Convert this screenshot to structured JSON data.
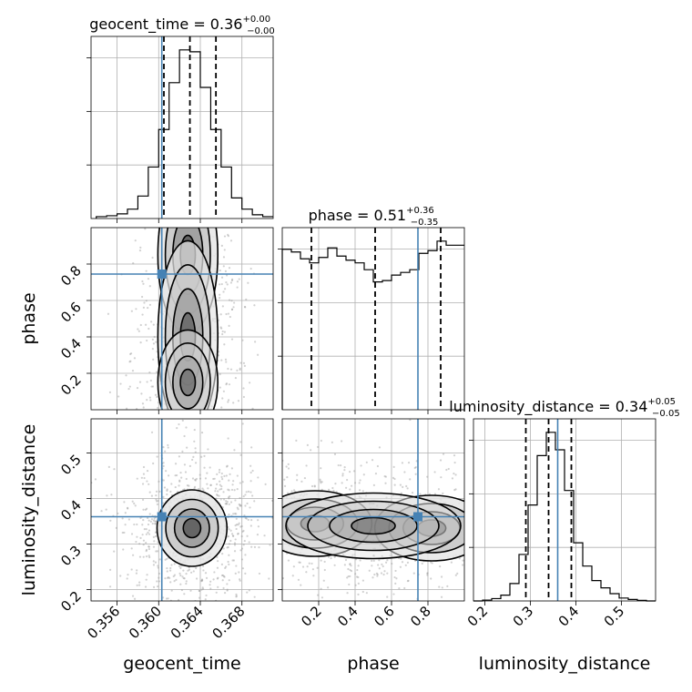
{
  "chart_data": {
    "type": "corner",
    "truth_color": "#4682b4",
    "parameters": [
      {
        "name": "geocent_time",
        "label": "geocent_time",
        "title": "geocent_time = 0.36",
        "median": "0.36",
        "err_plus": "+0.00",
        "err_minus": "−0.00",
        "range": [
          0.3535,
          0.371
        ],
        "ticks": [
          0.356,
          0.36,
          0.364,
          0.368
        ],
        "tick_labels": [
          "0.356",
          "0.360",
          "0.364",
          "0.368"
        ],
        "quantiles": [
          0.3605,
          0.363,
          0.3655
        ],
        "truth": 0.3603,
        "hist_x": [
          0.354,
          0.355,
          0.356,
          0.357,
          0.358,
          0.359,
          0.36,
          0.361,
          0.362,
          0.363,
          0.364,
          0.365,
          0.366,
          0.367,
          0.368,
          0.369,
          0.37
        ],
        "hist_y": [
          2,
          3,
          5,
          10,
          24,
          55,
          95,
          145,
          180,
          178,
          140,
          95,
          55,
          22,
          10,
          4,
          2
        ]
      },
      {
        "name": "phase",
        "label": "phase",
        "title": "phase = 0.51",
        "median": "0.51",
        "err_plus": "+0.36",
        "err_minus": "−0.35",
        "range": [
          0.0,
          1.0
        ],
        "ticks": [
          0.2,
          0.4,
          0.6,
          0.8
        ],
        "tick_labels": [
          "0.2",
          "0.4",
          "0.6",
          "0.8"
        ],
        "quantiles": [
          0.16,
          0.51,
          0.87
        ],
        "truth": 0.745,
        "hist_x": [
          0.0,
          0.05,
          0.1,
          0.15,
          0.2,
          0.25,
          0.3,
          0.35,
          0.4,
          0.45,
          0.5,
          0.55,
          0.6,
          0.65,
          0.7,
          0.75,
          0.8,
          0.85,
          0.9,
          0.95
        ],
        "hist_y": [
          118,
          116,
          111,
          108,
          112,
          119,
          113,
          110,
          108,
          103,
          94,
          95,
          99,
          101,
          103,
          115,
          117,
          124,
          121,
          121
        ]
      },
      {
        "name": "luminosity_distance",
        "label": "luminosity_distance",
        "title": "luminosity_distance = 0.34",
        "median": "0.34",
        "err_plus": "+0.05",
        "err_minus": "−0.05",
        "range": [
          0.175,
          0.575
        ],
        "ticks": [
          0.2,
          0.3,
          0.4,
          0.5
        ],
        "tick_labels": [
          "0.2",
          "0.3",
          "0.4",
          "0.5"
        ],
        "quantiles": [
          0.29,
          0.34,
          0.39
        ],
        "truth": 0.36,
        "hist_x": [
          0.175,
          0.195,
          0.215,
          0.235,
          0.255,
          0.275,
          0.295,
          0.315,
          0.335,
          0.355,
          0.375,
          0.395,
          0.415,
          0.435,
          0.455,
          0.475,
          0.495,
          0.515,
          0.535,
          0.555
        ],
        "hist_y": [
          0,
          3,
          8,
          20,
          60,
          160,
          330,
          500,
          580,
          520,
          380,
          200,
          120,
          70,
          45,
          25,
          10,
          5,
          2,
          0
        ]
      }
    ],
    "yaxis_2d": {
      "phase": {
        "range": [
          0.0,
          1.0
        ],
        "ticks": [
          0.2,
          0.4,
          0.6,
          0.8
        ],
        "tick_labels": [
          "0.2",
          "0.4",
          "0.6",
          "0.8"
        ]
      },
      "luminosity_distance": {
        "range": [
          0.175,
          0.575
        ],
        "ticks": [
          0.2,
          0.3,
          0.4,
          0.5
        ],
        "tick_labels": [
          "0.2",
          "0.3",
          "0.4",
          "0.5"
        ]
      }
    },
    "density_2d": [
      {
        "x": "geocent_time",
        "y": "phase",
        "x_range": [
          0.3595,
          0.3665
        ],
        "blobs": [
          [
            0.3628,
            0.85,
            0.0012,
            0.18,
            1.0
          ],
          [
            0.3628,
            0.4,
            0.0012,
            0.22,
            0.85
          ],
          [
            0.3628,
            0.15,
            0.0012,
            0.12,
            0.7
          ]
        ]
      },
      {
        "x": "geocent_time",
        "y": "luminosity_distance",
        "blobs": [
          [
            0.3632,
            0.335,
            0.0014,
            0.035,
            1.0
          ]
        ]
      },
      {
        "x": "phase",
        "y": "luminosity_distance",
        "blobs": [
          [
            0.18,
            0.345,
            0.13,
            0.03,
            0.9
          ],
          [
            0.82,
            0.335,
            0.13,
            0.03,
            1.0
          ],
          [
            0.5,
            0.34,
            0.2,
            0.03,
            0.6
          ]
        ]
      }
    ]
  }
}
